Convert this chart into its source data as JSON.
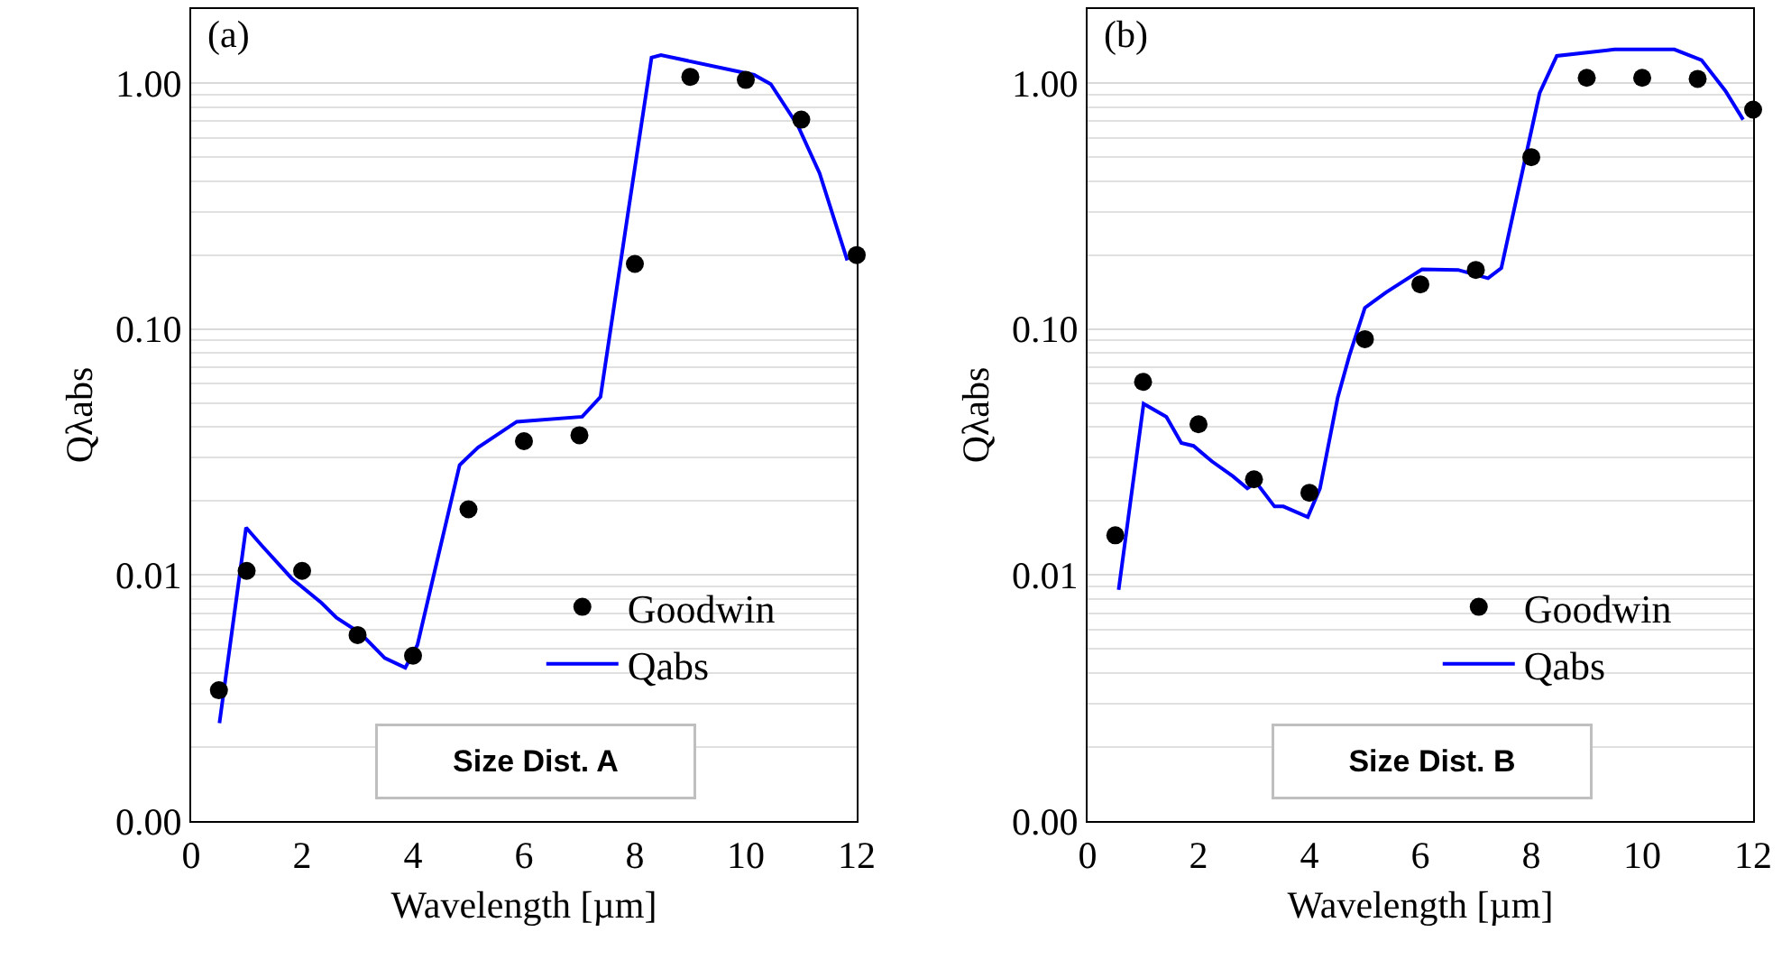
{
  "chart_data": [
    {
      "type": "scatter",
      "xlabel": "Wavelength [µm]",
      "ylabel": "Qλabs",
      "annotations": [
        "(a)",
        "Size Dist. A"
      ],
      "x": [
        0.5,
        1,
        2,
        3,
        4,
        5,
        6,
        7,
        8,
        9,
        10,
        11,
        12
      ],
      "series": [
        {
          "name": "Goodwin",
          "type": "scatter",
          "color": "#000000",
          "marker": "circle",
          "values": [
            0.0034,
            0.0104,
            0.0104,
            0.0057,
            0.0047,
            0.0185,
            0.035,
            0.037,
            0.184,
            1.06,
            1.03,
            0.71,
            0.2
          ]
        },
        {
          "name": "Qabs",
          "type": "line",
          "color": "#0000ff",
          "line_style": "solid",
          "x": [
            0.51,
            0.99,
            1.27,
            1.81,
            2.35,
            2.62,
            3.05,
            3.49,
            3.86,
            4.08,
            4.46,
            4.84,
            5.17,
            5.87,
            7.05,
            7.38,
            7.87,
            8.3,
            8.47,
            10.15,
            10.45,
            10.94,
            11.33,
            11.83
          ],
          "values": [
            0.0025,
            0.0156,
            0.0132,
            0.0097,
            0.0077,
            0.0067,
            0.0058,
            0.0046,
            0.0042,
            0.0052,
            0.0121,
            0.028,
            0.033,
            0.042,
            0.044,
            0.053,
            0.29,
            1.27,
            1.3,
            1.08,
            0.99,
            0.67,
            0.43,
            0.19
          ]
        }
      ],
      "xlim": [
        0,
        12
      ],
      "xticks": [
        0,
        2,
        4,
        6,
        8,
        10,
        12
      ],
      "ylim": [
        0.001,
        2
      ],
      "yticks": [
        {
          "value": 0.001,
          "label": "0.00"
        },
        {
          "value": 0.01,
          "label": "0.01"
        },
        {
          "value": 0.1,
          "label": "0.10"
        },
        {
          "value": 1,
          "label": "1.00"
        }
      ],
      "log": true,
      "grid": "y",
      "legend": "bottom right"
    },
    {
      "type": "scatter",
      "xlabel": "Wavelength [µm]",
      "ylabel": "Qλabs",
      "annotations": [
        "(b)",
        "Size Dist. B"
      ],
      "x": [
        0.5,
        1,
        2,
        3,
        4,
        5,
        6,
        7,
        8,
        9,
        10,
        11,
        12
      ],
      "series": [
        {
          "name": "Goodwin",
          "type": "scatter",
          "color": "#000000",
          "marker": "circle",
          "values": [
            0.0145,
            0.061,
            0.041,
            0.0245,
            0.0216,
            0.091,
            0.152,
            0.174,
            0.5,
            1.05,
            1.05,
            1.04,
            0.78
          ]
        },
        {
          "name": "Qabs",
          "type": "line",
          "color": "#0000ff",
          "line_style": "solid",
          "x": [
            0.56,
            1.01,
            1.42,
            1.69,
            1.91,
            2.24,
            2.62,
            2.88,
            3.04,
            3.37,
            3.53,
            3.97,
            4.19,
            4.51,
            4.72,
            5.0,
            5.38,
            6.03,
            6.68,
            7.22,
            7.46,
            7.77,
            8.15,
            8.46,
            9.5,
            10.58,
            11.07,
            11.5,
            11.82
          ],
          "values": [
            0.0087,
            0.0497,
            0.044,
            0.0344,
            0.0335,
            0.029,
            0.0252,
            0.0225,
            0.0238,
            0.019,
            0.019,
            0.0172,
            0.0225,
            0.0526,
            0.078,
            0.122,
            0.141,
            0.175,
            0.174,
            0.161,
            0.177,
            0.37,
            0.91,
            1.29,
            1.37,
            1.37,
            1.24,
            0.93,
            0.71
          ]
        }
      ],
      "xlim": [
        0,
        12
      ],
      "xticks": [
        0,
        2,
        4,
        6,
        8,
        10,
        12
      ],
      "ylim": [
        0.001,
        2
      ],
      "yticks": [
        {
          "value": 0.001,
          "label": "0.00"
        },
        {
          "value": 0.01,
          "label": "0.01"
        },
        {
          "value": 0.1,
          "label": "0.10"
        },
        {
          "value": 1,
          "label": "1.00"
        }
      ],
      "log": true,
      "grid": "y",
      "legend": "bottom right"
    }
  ]
}
